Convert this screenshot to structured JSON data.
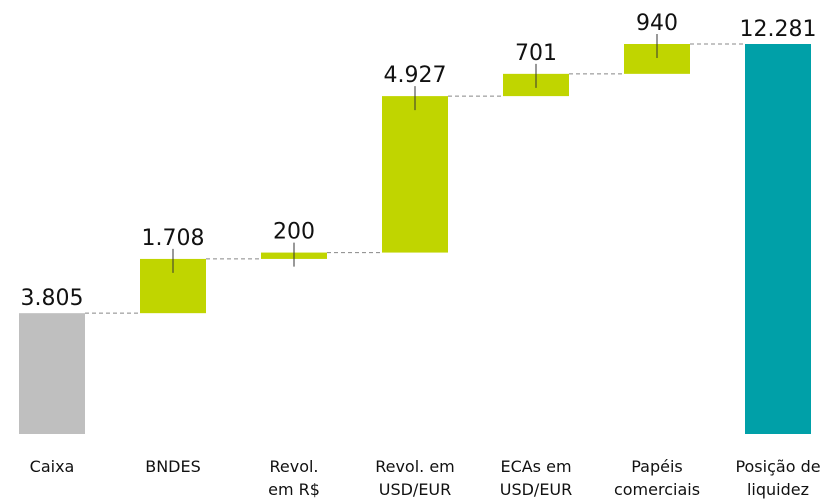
{
  "chart_data": {
    "type": "waterfall",
    "categories": [
      [
        "Caixa"
      ],
      [
        "BNDES"
      ],
      [
        "Revol.",
        "em R$"
      ],
      [
        "Revol. em",
        "USD/EUR"
      ],
      [
        "ECAs em",
        "USD/EUR"
      ],
      [
        "Papéis",
        "comerciais"
      ],
      [
        "Posição de",
        "liquidez"
      ]
    ],
    "values": [
      3805,
      1708,
      200,
      4927,
      701,
      940,
      12281
    ],
    "value_labels": [
      "3.805",
      "1.708",
      "200",
      "4.927",
      "701",
      "940",
      "12.281"
    ],
    "measure": [
      "absolute",
      "relative",
      "relative",
      "relative",
      "relative",
      "relative",
      "total"
    ],
    "colors": {
      "absolute": "#bfbfbf",
      "relative": "#c0d500",
      "total": "#00a0a8"
    }
  }
}
